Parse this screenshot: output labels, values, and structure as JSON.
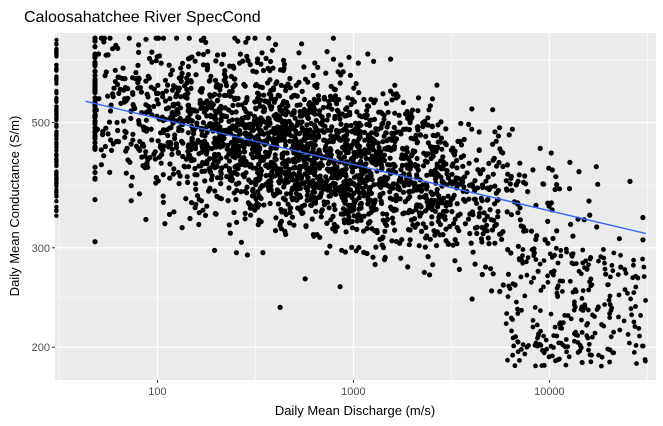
{
  "chart_data": {
    "type": "scatter",
    "title": "Caloosahatchee River SpecCond",
    "xlabel": "Daily Mean Discharge (m/s)",
    "ylabel": "Daily Mean Conductance (S/m)",
    "x_scale": "log10",
    "y_scale": "log10",
    "xlim": [
      30,
      35000
    ],
    "ylim": [
      175,
      720
    ],
    "x_ticks": [
      100,
      1000,
      10000
    ],
    "x_tick_labels": [
      "100",
      "1000",
      "10000"
    ],
    "y_ticks": [
      200,
      300,
      500
    ],
    "y_tick_labels": [
      "200",
      "300",
      "500"
    ],
    "grid": true,
    "legend": "none",
    "colors": {
      "panel": "#ebebeb",
      "grid": "#ffffff",
      "points": "#000000",
      "fit_line": "#3366ff"
    },
    "series": [
      {
        "kind": "points",
        "description_of_cloud": "dense cloud of daily observations",
        "x": [],
        "y": []
      },
      {
        "kind": "smooth",
        "method": "linear fit on log-log axes",
        "x": [
          43,
          31000
        ],
        "y": [
          545,
          318
        ]
      }
    ]
  }
}
